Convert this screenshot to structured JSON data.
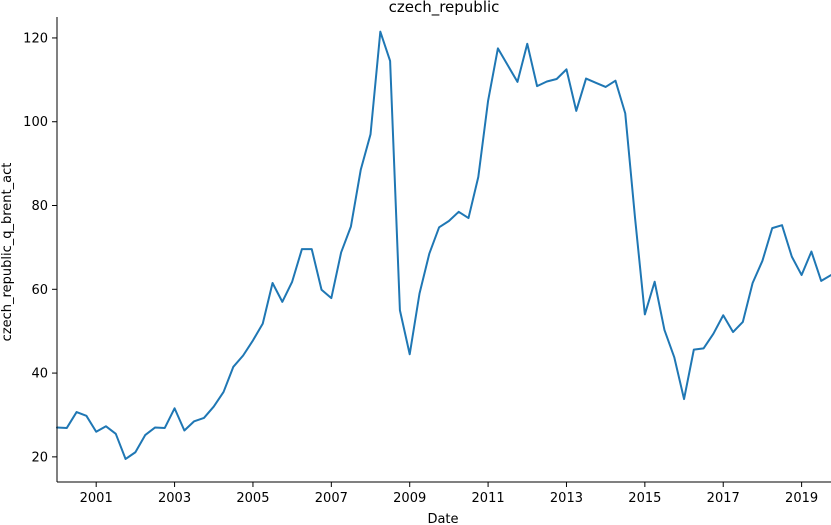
{
  "chart_data": {
    "type": "line",
    "title": "czech_republic",
    "xlabel": "Date",
    "ylabel": "czech_republic_q_brent_act",
    "x_tick_labels": [
      "2001",
      "2003",
      "2005",
      "2007",
      "2009",
      "2011",
      "2013",
      "2015",
      "2017",
      "2019"
    ],
    "y_tick_labels": [
      "20",
      "40",
      "60",
      "80",
      "100",
      "120"
    ],
    "xlim": [
      "2000-01-01",
      "2019-10-01"
    ],
    "ylim": [
      14,
      125
    ],
    "grid": false,
    "line_color": "#1f77b4",
    "series": [
      {
        "x": [
          "2000-01-01",
          "2000-04-01",
          "2000-07-01",
          "2000-10-01",
          "2001-01-01",
          "2001-04-01",
          "2001-07-01",
          "2001-10-01",
          "2002-01-01",
          "2002-04-01",
          "2002-07-01",
          "2002-10-01",
          "2003-01-01",
          "2003-04-01",
          "2003-07-01",
          "2003-10-01",
          "2004-01-01",
          "2004-04-01",
          "2004-07-01",
          "2004-10-01",
          "2005-01-01",
          "2005-04-01",
          "2005-07-01",
          "2005-10-01",
          "2006-01-01",
          "2006-04-01",
          "2006-07-01",
          "2006-10-01",
          "2007-01-01",
          "2007-04-01",
          "2007-07-01",
          "2007-10-01",
          "2008-01-01",
          "2008-04-01",
          "2008-07-01",
          "2008-10-01",
          "2009-01-01",
          "2009-04-01",
          "2009-07-01",
          "2009-10-01",
          "2010-01-01",
          "2010-04-01",
          "2010-07-01",
          "2010-10-01",
          "2011-01-01",
          "2011-04-01",
          "2011-07-01",
          "2011-10-01",
          "2012-01-01",
          "2012-04-01",
          "2012-07-01",
          "2012-10-01",
          "2013-01-01",
          "2013-04-01",
          "2013-07-01",
          "2013-10-01",
          "2014-01-01",
          "2014-04-01",
          "2014-07-01",
          "2014-10-01",
          "2015-01-01",
          "2015-04-01",
          "2015-07-01",
          "2015-10-01",
          "2016-01-01",
          "2016-04-01",
          "2016-07-01",
          "2016-10-01",
          "2017-01-01",
          "2017-04-01",
          "2017-07-01",
          "2017-10-01",
          "2018-01-01",
          "2018-04-01",
          "2018-07-01",
          "2018-10-01",
          "2019-01-01",
          "2019-04-01",
          "2019-07-01",
          "2019-10-01"
        ],
        "values": [
          27.0,
          26.9,
          30.7,
          29.8,
          26.0,
          27.3,
          25.5,
          19.5,
          21.1,
          25.2,
          27.0,
          26.9,
          31.6,
          26.3,
          28.5,
          29.3,
          32.0,
          35.5,
          41.5,
          44.2,
          47.8,
          51.8,
          61.5,
          57.0,
          61.8,
          69.6,
          69.6,
          59.9,
          57.9,
          68.8,
          75.0,
          88.5,
          97.0,
          121.5,
          114.5,
          55.0,
          44.5,
          59.0,
          68.5,
          74.8,
          76.3,
          78.5,
          77.0,
          86.8,
          105.0,
          117.5,
          113.5,
          109.5,
          118.6,
          108.5,
          109.6,
          110.2,
          112.5,
          102.6,
          110.3,
          109.3,
          108.3,
          109.8,
          102.0,
          77.0,
          54.0,
          61.8,
          50.3,
          43.8,
          33.8,
          45.6,
          45.9,
          49.4,
          53.8,
          49.8,
          52.2,
          61.5,
          66.8,
          74.6,
          75.3,
          67.8,
          63.4,
          69.0,
          62.0,
          63.4
        ]
      }
    ]
  }
}
